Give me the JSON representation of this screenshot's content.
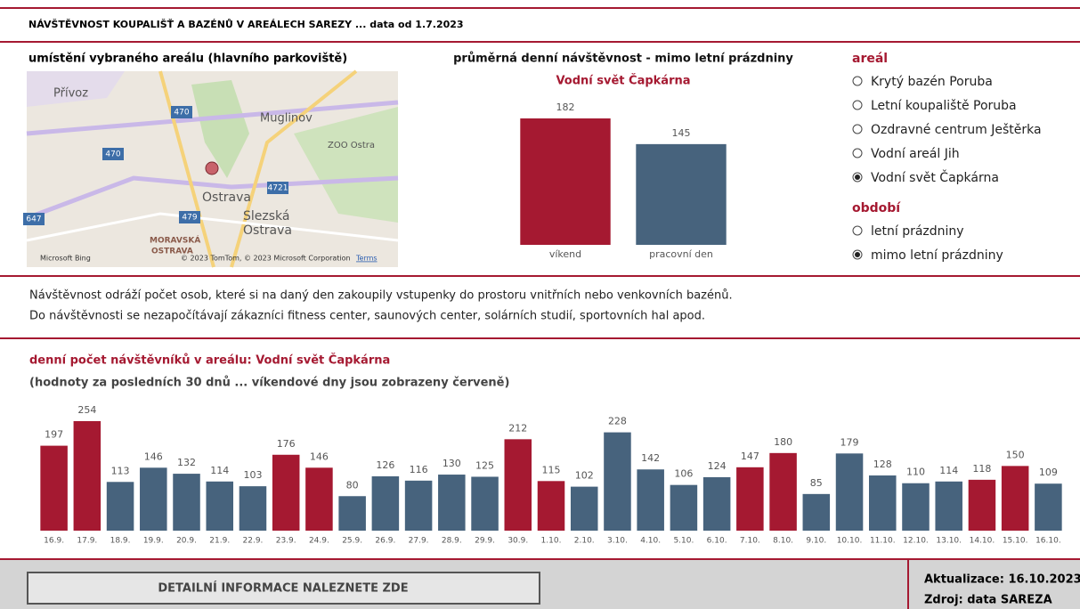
{
  "header": {
    "title": "NÁVŠTĚVNOST KOUPALIŠŤ A BAZÉNŮ V AREÁLECH SAREZY ... data od 1.7.2023"
  },
  "map": {
    "title": "umístění vybraného areálu (hlavního parkoviště)",
    "places": [
      "Přívoz",
      "Muglinov",
      "ZOO Ostra",
      "Ostrava",
      "Slezská",
      "Ostrava",
      "MORAVSKÁ",
      "OSTRAVA"
    ],
    "roads": [
      "470",
      "470",
      "479",
      "4721",
      "647"
    ],
    "credits": [
      "Microsoft Bing",
      "© 2023 TomTom, © 2023 Microsoft Corporation",
      "Terms"
    ]
  },
  "filters": {
    "areal": {
      "title": "areál",
      "options": [
        "Krytý bazén Poruba",
        "Letní koupaliště Poruba",
        "Ozdravné centrum Ještěrka",
        "Vodní areál Jih",
        "Vodní svět Čapkárna"
      ],
      "selected": 4
    },
    "obdobi": {
      "title": "období",
      "options": [
        "letní prázdniny",
        "mimo letní prázdniny"
      ],
      "selected": 1
    }
  },
  "description": [
    "Návštěvnost odráží počet osob, které si na daný den zakoupily vstupenky do prostoru vnitřních nebo venkovních bazénů.",
    "Do návštěvnosti se nezapočítávají zákazníci fitness center, saunových center, solárních studií, sportovních hal apod."
  ],
  "chart_data": [
    {
      "type": "bar",
      "title": "průměrná denní návštěvnost - mimo letní prázdniny",
      "subtitle": "Vodní svět Čapkárna",
      "categories": [
        "víkend",
        "pracovní den"
      ],
      "values": [
        182,
        145
      ],
      "colors": [
        "#a51931",
        "#47637d"
      ]
    },
    {
      "type": "bar",
      "title": "denní počet návštěvníků v areálu: Vodní svět Čapkárna",
      "subtitle": "(hodnoty za posledních 30 dnů ... víkendové dny jsou zobrazeny červeně)",
      "categories": [
        "16.9.",
        "17.9.",
        "18.9.",
        "19.9.",
        "20.9.",
        "21.9.",
        "22.9.",
        "23.9.",
        "24.9.",
        "25.9.",
        "26.9.",
        "27.9.",
        "28.9.",
        "29.9.",
        "30.9.",
        "1.10.",
        "2.10.",
        "3.10.",
        "4.10.",
        "5.10.",
        "6.10.",
        "7.10.",
        "8.10.",
        "9.10.",
        "10.10.",
        "11.10.",
        "12.10.",
        "13.10.",
        "14.10.",
        "15.10.",
        "16.10."
      ],
      "values": [
        197,
        254,
        113,
        146,
        132,
        114,
        103,
        176,
        146,
        80,
        126,
        116,
        130,
        125,
        212,
        115,
        102,
        228,
        142,
        106,
        124,
        147,
        180,
        85,
        179,
        128,
        110,
        114,
        118,
        150,
        109
      ],
      "colors": [
        "#a51931",
        "#a51931",
        "#47637d",
        "#47637d",
        "#47637d",
        "#47637d",
        "#47637d",
        "#a51931",
        "#a51931",
        "#47637d",
        "#47637d",
        "#47637d",
        "#47637d",
        "#47637d",
        "#a51931",
        "#a51931",
        "#47637d",
        "#47637d",
        "#47637d",
        "#47637d",
        "#47637d",
        "#a51931",
        "#a51931",
        "#47637d",
        "#47637d",
        "#47637d",
        "#47637d",
        "#47637d",
        "#a51931",
        "#a51931",
        "#47637d"
      ]
    }
  ],
  "footer": {
    "button": "DETAILNÍ INFORMACE NALEZNETE ZDE",
    "updated": "Aktualizace: 16.10.2023",
    "source": "Zdroj: data SAREZA"
  }
}
